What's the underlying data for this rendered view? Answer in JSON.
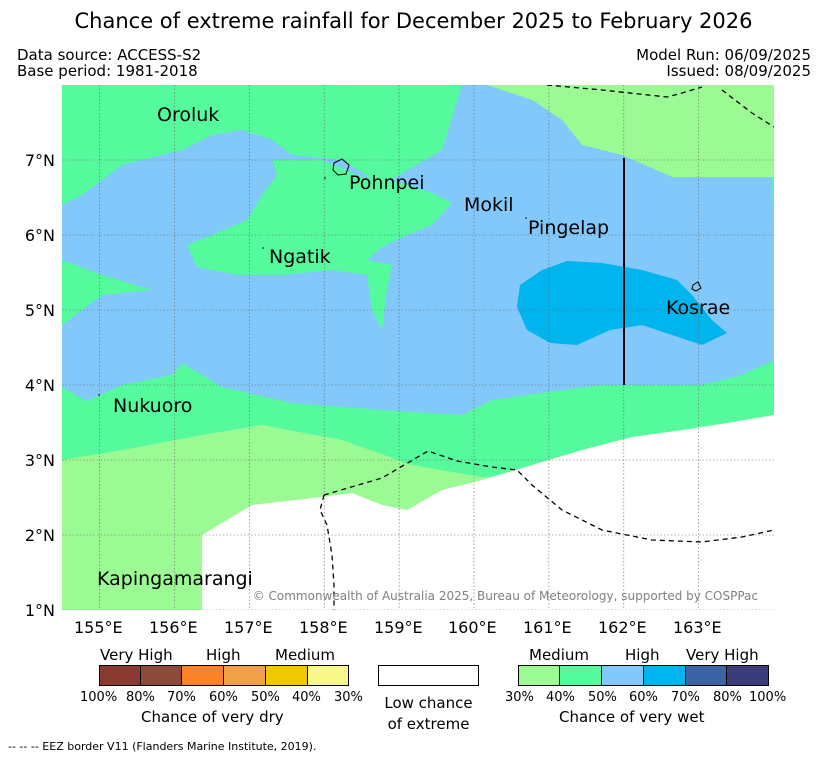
{
  "title": "Chance of extreme rainfall for December 2025 to February 2026",
  "meta": {
    "data_source": "Data source: ACCESS-S2",
    "base_period": "Base period: 1981-2018",
    "model_run": "Model Run: 06/09/2025",
    "issued": "Issued: 08/09/2025"
  },
  "map": {
    "lat_ticks": [
      "7°N",
      "6°N",
      "5°N",
      "4°N",
      "3°N",
      "2°N",
      "1°N"
    ],
    "lon_ticks": [
      "155°E",
      "156°E",
      "157°E",
      "158°E",
      "159°E",
      "160°E",
      "161°E",
      "162°E",
      "163°E"
    ],
    "places": {
      "oroluk": "Oroluk",
      "pohnpei": "Pohnpei",
      "mokil": "Mokil",
      "pingelap": "Pingelap",
      "ngatik": "Ngatik",
      "kosrae": "Kosrae",
      "nukuoro": "Nukuoro",
      "kapingamarangi": "Kapingamarangi"
    },
    "copyright": "© Commonwealth of Australia 2025, Bureau of Meteorology, supported by COSPPac",
    "colors": {
      "wet_30": "#9cfa94",
      "wet_40": "#54fa9c",
      "wet_50": "#82c8fa",
      "wet_60": "#00b4ee",
      "wet_70": "#3a64a4",
      "wet_80": "#3c3c7a",
      "dry_100": "#8b3a32",
      "dry_80": "#8c4a3a",
      "dry_70": "#fc8228",
      "dry_60": "#f0a048",
      "dry_50": "#f0c800",
      "dry_40": "#f8f88a",
      "low": "#ffffff"
    }
  },
  "legend": {
    "dry": {
      "categories": [
        "Very High",
        "High",
        "Medium"
      ],
      "ticks": [
        "100%",
        "80%",
        "70%",
        "60%",
        "50%",
        "40%",
        "30%"
      ],
      "title": "Chance of very dry"
    },
    "low": {
      "line1": "Low chance",
      "line2": "of extreme"
    },
    "wet": {
      "categories": [
        "Medium",
        "High",
        "Very High"
      ],
      "ticks": [
        "30%",
        "40%",
        "50%",
        "60%",
        "70%",
        "80%",
        "100%"
      ],
      "title": "Chance of very wet"
    }
  },
  "footnote": "--  --  -- EEZ border V11 (Flanders Marine Institute, 2019)."
}
